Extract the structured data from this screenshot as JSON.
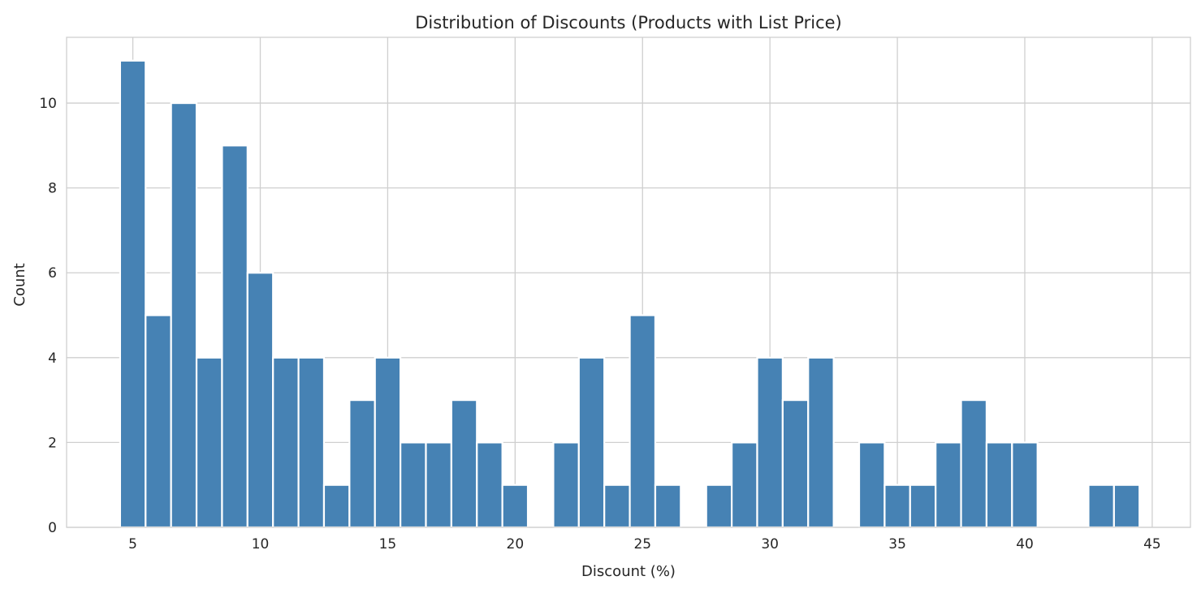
{
  "chart_data": {
    "type": "bar",
    "title": "Distribution of Discounts (Products with List Price)",
    "xlabel": "Discount (%)",
    "ylabel": "Count",
    "xlim": [
      2.4,
      46.5
    ],
    "ylim": [
      0,
      11.55
    ],
    "x_ticks": [
      5,
      10,
      15,
      20,
      25,
      30,
      35,
      40,
      45
    ],
    "y_ticks": [
      0,
      2,
      4,
      6,
      8,
      10
    ],
    "grid": true,
    "bar_color": "#4682b4",
    "bin_width": 1.0,
    "bin_centers": [
      5,
      6,
      7,
      8,
      9,
      10,
      11,
      12,
      13,
      14,
      15,
      16,
      17,
      18,
      19,
      20,
      21,
      22,
      23,
      24,
      25,
      26,
      27,
      28,
      29,
      30,
      31,
      32,
      33,
      34,
      35,
      36,
      37,
      38,
      39,
      40,
      41,
      42,
      43,
      44
    ],
    "values": [
      11,
      5,
      10,
      4,
      9,
      6,
      4,
      4,
      1,
      3,
      4,
      2,
      2,
      3,
      2,
      1,
      0,
      2,
      4,
      1,
      5,
      1,
      0,
      1,
      2,
      4,
      3,
      4,
      0,
      2,
      1,
      1,
      2,
      3,
      2,
      2,
      0,
      0,
      1,
      1
    ]
  }
}
